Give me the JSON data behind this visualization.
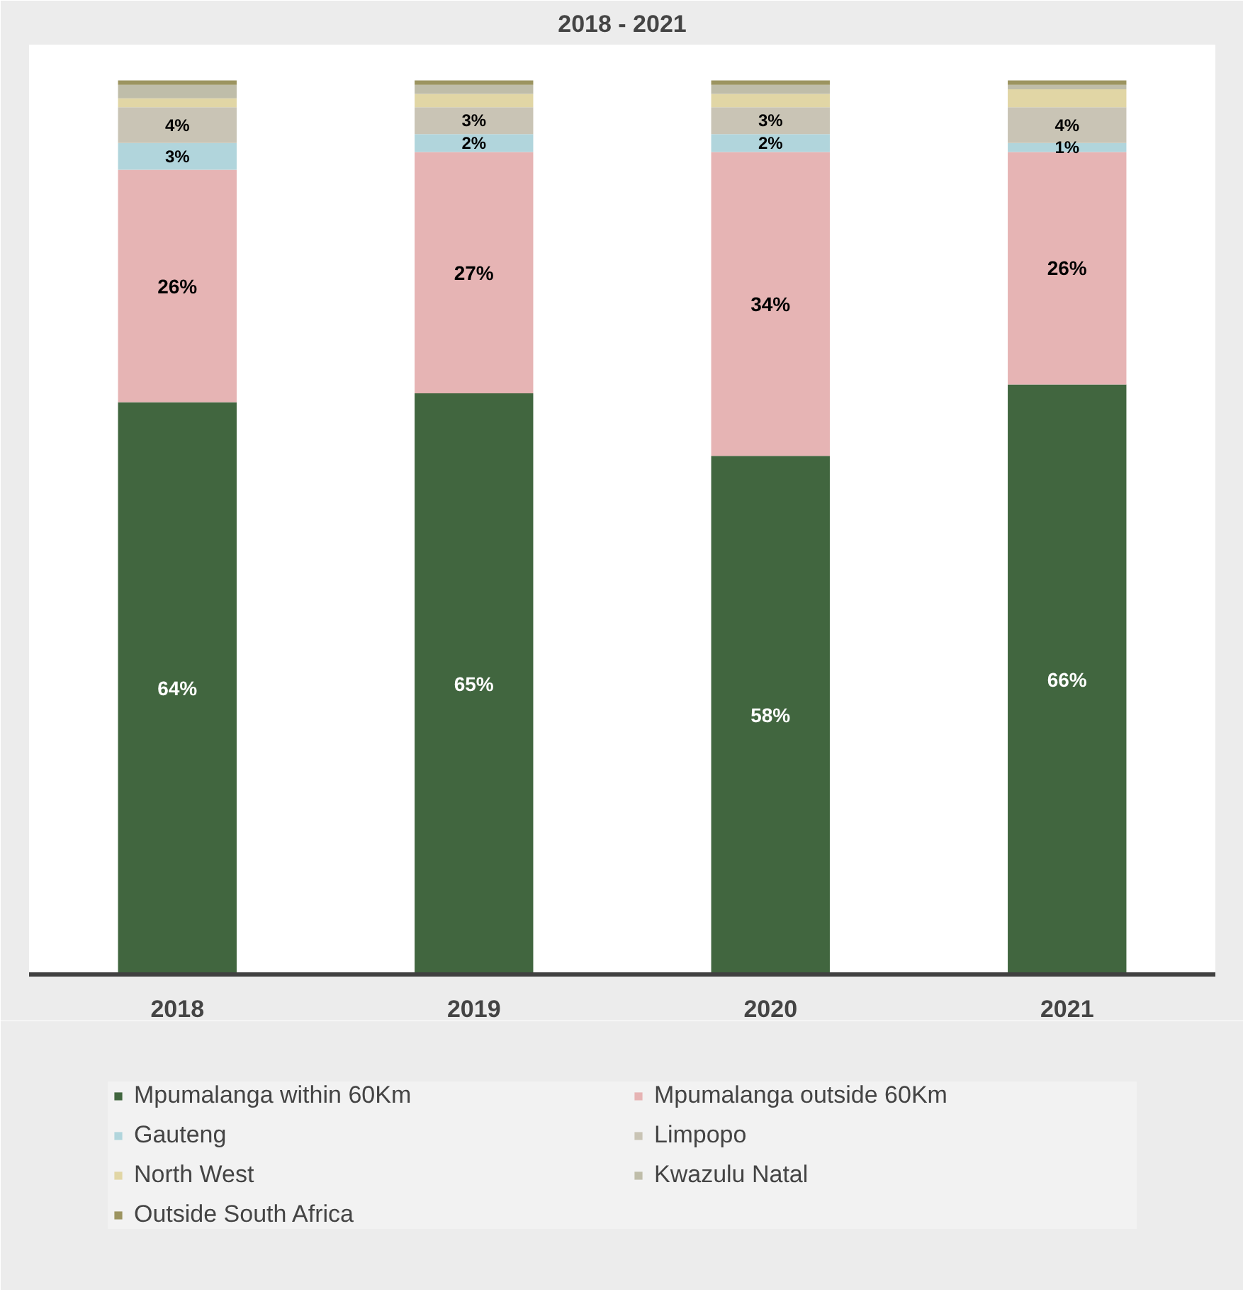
{
  "chart_data": {
    "type": "bar",
    "title": "2018 - 2021",
    "stacked": true,
    "categories": [
      "2018",
      "2019",
      "2020",
      "2021"
    ],
    "legend": "bottom",
    "series": [
      {
        "name": "Mpumalanga within 60Km",
        "color": "#41663f",
        "values": [
          64,
          65,
          58,
          66
        ],
        "value_labels": [
          "64%",
          "65%",
          "58%",
          "66%"
        ]
      },
      {
        "name": "Mpumalanga outside 60Km",
        "color": "#e6b4b4",
        "values": [
          26,
          27,
          34,
          26
        ],
        "value_labels": [
          "26%",
          "27%",
          "34%",
          "26%"
        ]
      },
      {
        "name": "Gauteng",
        "color": "#b1d5dc",
        "values": [
          3,
          2,
          2,
          1
        ],
        "value_labels": [
          "3%",
          "2%",
          "2%",
          "1%"
        ]
      },
      {
        "name": "Limpopo",
        "color": "#c9c4b5",
        "values": [
          4,
          3,
          3,
          4
        ],
        "value_labels": [
          "4%",
          "3%",
          "3%",
          "4%"
        ]
      },
      {
        "name": "North West",
        "color": "#e1d6a5",
        "values": [
          1,
          1.5,
          1.5,
          2
        ]
      },
      {
        "name": "Kwazulu Natal",
        "color": "#bfbda9",
        "values": [
          1.5,
          1,
          1,
          0.5
        ]
      },
      {
        "name": "Outside South Africa",
        "color": "#9c9460",
        "values": [
          0.5,
          0.5,
          0.5,
          0.5
        ]
      }
    ]
  }
}
